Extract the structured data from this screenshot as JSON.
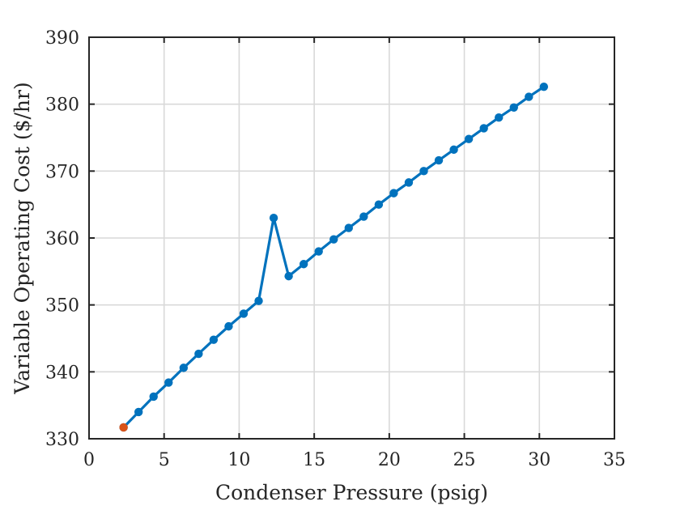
{
  "chart_data": {
    "type": "line",
    "xlabel": "Condenser Pressure (psig)",
    "ylabel": "Variable Operating Cost ($/hr)",
    "xlim": [
      0,
      35
    ],
    "ylim": [
      330,
      390
    ],
    "xticks": [
      0,
      5,
      10,
      15,
      20,
      25,
      30,
      35
    ],
    "yticks": [
      330,
      340,
      350,
      360,
      370,
      380,
      390
    ],
    "grid": true,
    "series": [
      {
        "color": "#0072bd",
        "x": [
          2.3,
          3.3,
          4.3,
          5.3,
          6.3,
          7.3,
          8.3,
          9.3,
          10.3,
          11.3,
          12.3,
          13.3,
          14.3,
          15.3,
          16.3,
          17.3,
          18.3,
          19.3,
          20.3,
          21.3,
          22.3,
          23.3,
          24.3,
          25.3,
          26.3,
          27.3,
          28.3,
          29.3,
          30.3
        ],
        "y": [
          331.7,
          334.0,
          336.3,
          338.4,
          340.6,
          342.7,
          344.8,
          346.8,
          348.7,
          350.6,
          363.0,
          354.3,
          356.1,
          358.0,
          359.8,
          361.5,
          363.2,
          365.0,
          366.7,
          368.3,
          370.0,
          371.6,
          373.2,
          374.8,
          376.4,
          378.0,
          379.5,
          381.1,
          382.6
        ]
      }
    ],
    "highlight_point": {
      "x": 2.3,
      "y": 331.7,
      "color": "#d95319"
    }
  }
}
